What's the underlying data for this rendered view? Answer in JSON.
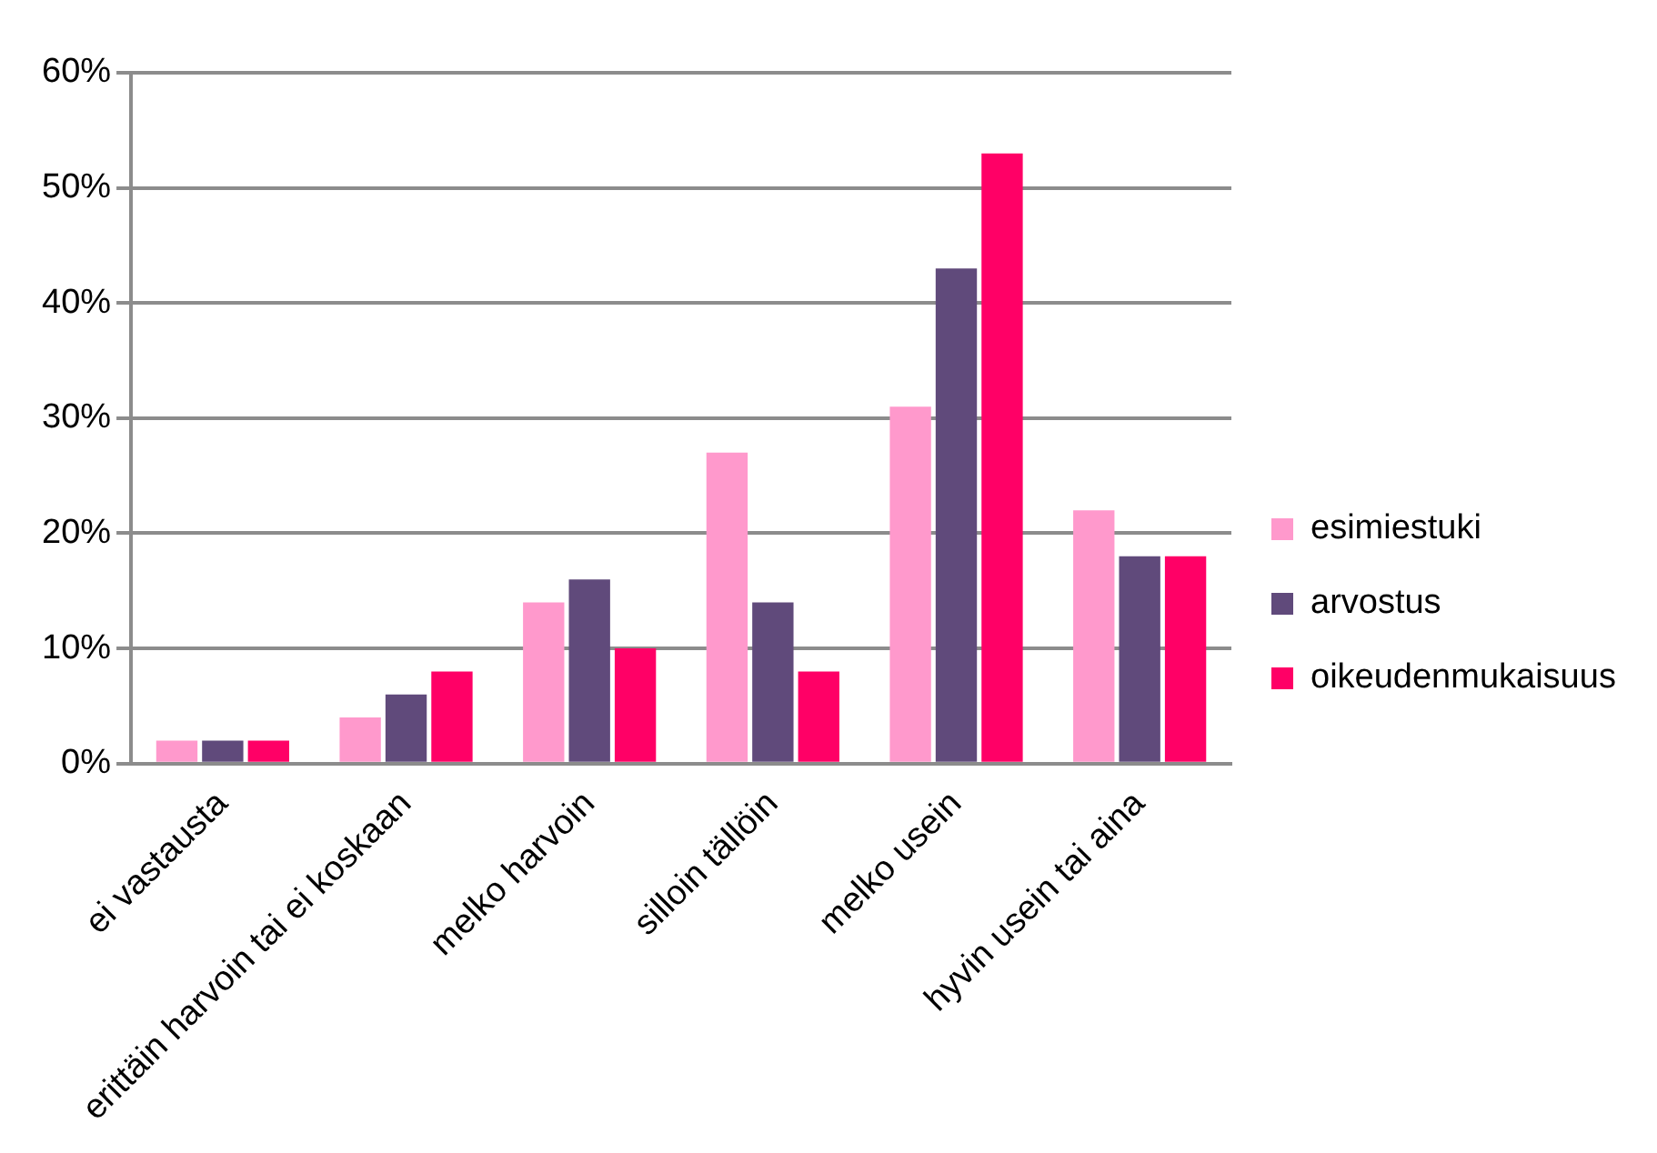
{
  "chart_data": {
    "type": "bar",
    "categories": [
      "ei vastausta",
      "erittäin harvoin tai ei koskaan",
      "melko harvoin",
      "silloin tällöin",
      "melko usein",
      "hyvin usein tai aina"
    ],
    "series": [
      {
        "name": "esimiestuki",
        "color": "#ff99cc",
        "values": [
          2,
          4,
          14,
          27,
          31,
          22
        ]
      },
      {
        "name": "arvostus",
        "color": "#604a7b",
        "values": [
          2,
          6,
          16,
          14,
          43,
          18
        ]
      },
      {
        "name": "oikeudenmukaisuus",
        "color": "#ff0066",
        "values": [
          2,
          8,
          10,
          8,
          53,
          18
        ]
      }
    ],
    "ylim": [
      0,
      60
    ],
    "yticks": [
      {
        "value": 0,
        "label": "0%"
      },
      {
        "value": 10,
        "label": "10%"
      },
      {
        "value": 20,
        "label": "20%"
      },
      {
        "value": 30,
        "label": "30%"
      },
      {
        "value": 40,
        "label": "40%"
      },
      {
        "value": 50,
        "label": "50%"
      },
      {
        "value": 60,
        "label": "60%"
      }
    ],
    "grid": "y",
    "legend": "right"
  }
}
